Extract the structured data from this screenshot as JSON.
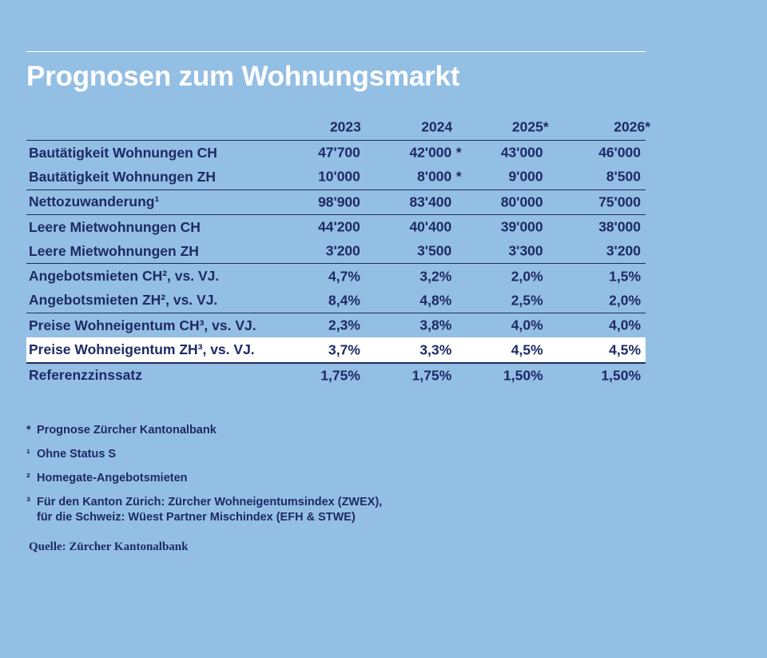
{
  "title": "Prognosen zum Wohnungsmarkt",
  "table": {
    "columns": [
      "2023",
      "2024",
      "2025*",
      "2026*"
    ],
    "rows": [
      {
        "label": "Bautätigkeit Wohnungen CH",
        "values": [
          "47'700",
          "42'000",
          "43'000",
          "46'000"
        ],
        "stars": [
          "",
          "*",
          "",
          ""
        ]
      },
      {
        "label": "Bautätigkeit Wohnungen ZH",
        "values": [
          "10'000",
          "8'000",
          "9'000",
          "8'500"
        ],
        "stars": [
          "",
          "*",
          "",
          ""
        ]
      },
      {
        "label": "Nettozuwanderung¹",
        "values": [
          "98'900",
          "83'400",
          "80'000",
          "75'000"
        ],
        "stars": [
          "",
          "",
          "",
          ""
        ]
      },
      {
        "label": "Leere Mietwohnungen CH",
        "values": [
          "44'200",
          "40'400",
          "39'000",
          "38'000"
        ],
        "stars": [
          "",
          "",
          "",
          ""
        ]
      },
      {
        "label": "Leere Mietwohnungen ZH",
        "values": [
          "3'200",
          "3'500",
          "3'300",
          "3'200"
        ],
        "stars": [
          "",
          "",
          "",
          ""
        ]
      },
      {
        "label": "Angebotsmieten CH², vs. VJ.",
        "values": [
          "4,7%",
          "3,2%",
          "2,0%",
          "1,5%"
        ],
        "stars": [
          "",
          "",
          "",
          ""
        ]
      },
      {
        "label": "Angebotsmieten ZH², vs. VJ.",
        "values": [
          "8,4%",
          "4,8%",
          "2,5%",
          "2,0%"
        ],
        "stars": [
          "",
          "",
          "",
          ""
        ]
      },
      {
        "label": "Preise Wohneigentum CH³, vs. VJ.",
        "values": [
          "2,3%",
          "3,8%",
          "4,0%",
          "4,0%"
        ],
        "stars": [
          "",
          "",
          "",
          ""
        ]
      },
      {
        "label": "Preise Wohneigentum ZH³, vs. VJ.",
        "values": [
          "3,7%",
          "3,3%",
          "4,5%",
          "4,5%"
        ],
        "stars": [
          "",
          "",
          "",
          ""
        ]
      },
      {
        "label": "Referenzzinssatz",
        "values": [
          "1,75%",
          "1,75%",
          "1,50%",
          "1,50%"
        ],
        "stars": [
          "",
          "",
          "",
          ""
        ]
      }
    ]
  },
  "footnotes": [
    {
      "mark": "*",
      "text": "Prognose Zürcher Kantonalbank"
    },
    {
      "mark": "¹",
      "text": "Ohne Status S"
    },
    {
      "mark": "²",
      "text": "Homegate-Angebotsmieten"
    },
    {
      "mark": "³",
      "text": "Für den Kanton Zürich: Zürcher Wohneigentumsindex (ZWEX),",
      "text2": "für die Schweiz: Wüest Partner Mischindex (EFH & STWE)"
    }
  ],
  "source": "Quelle: Zürcher Kantonalbank",
  "colors": {
    "background": "#94bfe4",
    "text": "#1e2a64",
    "title": "#ffffff",
    "highlight_row": "#ffffff"
  }
}
